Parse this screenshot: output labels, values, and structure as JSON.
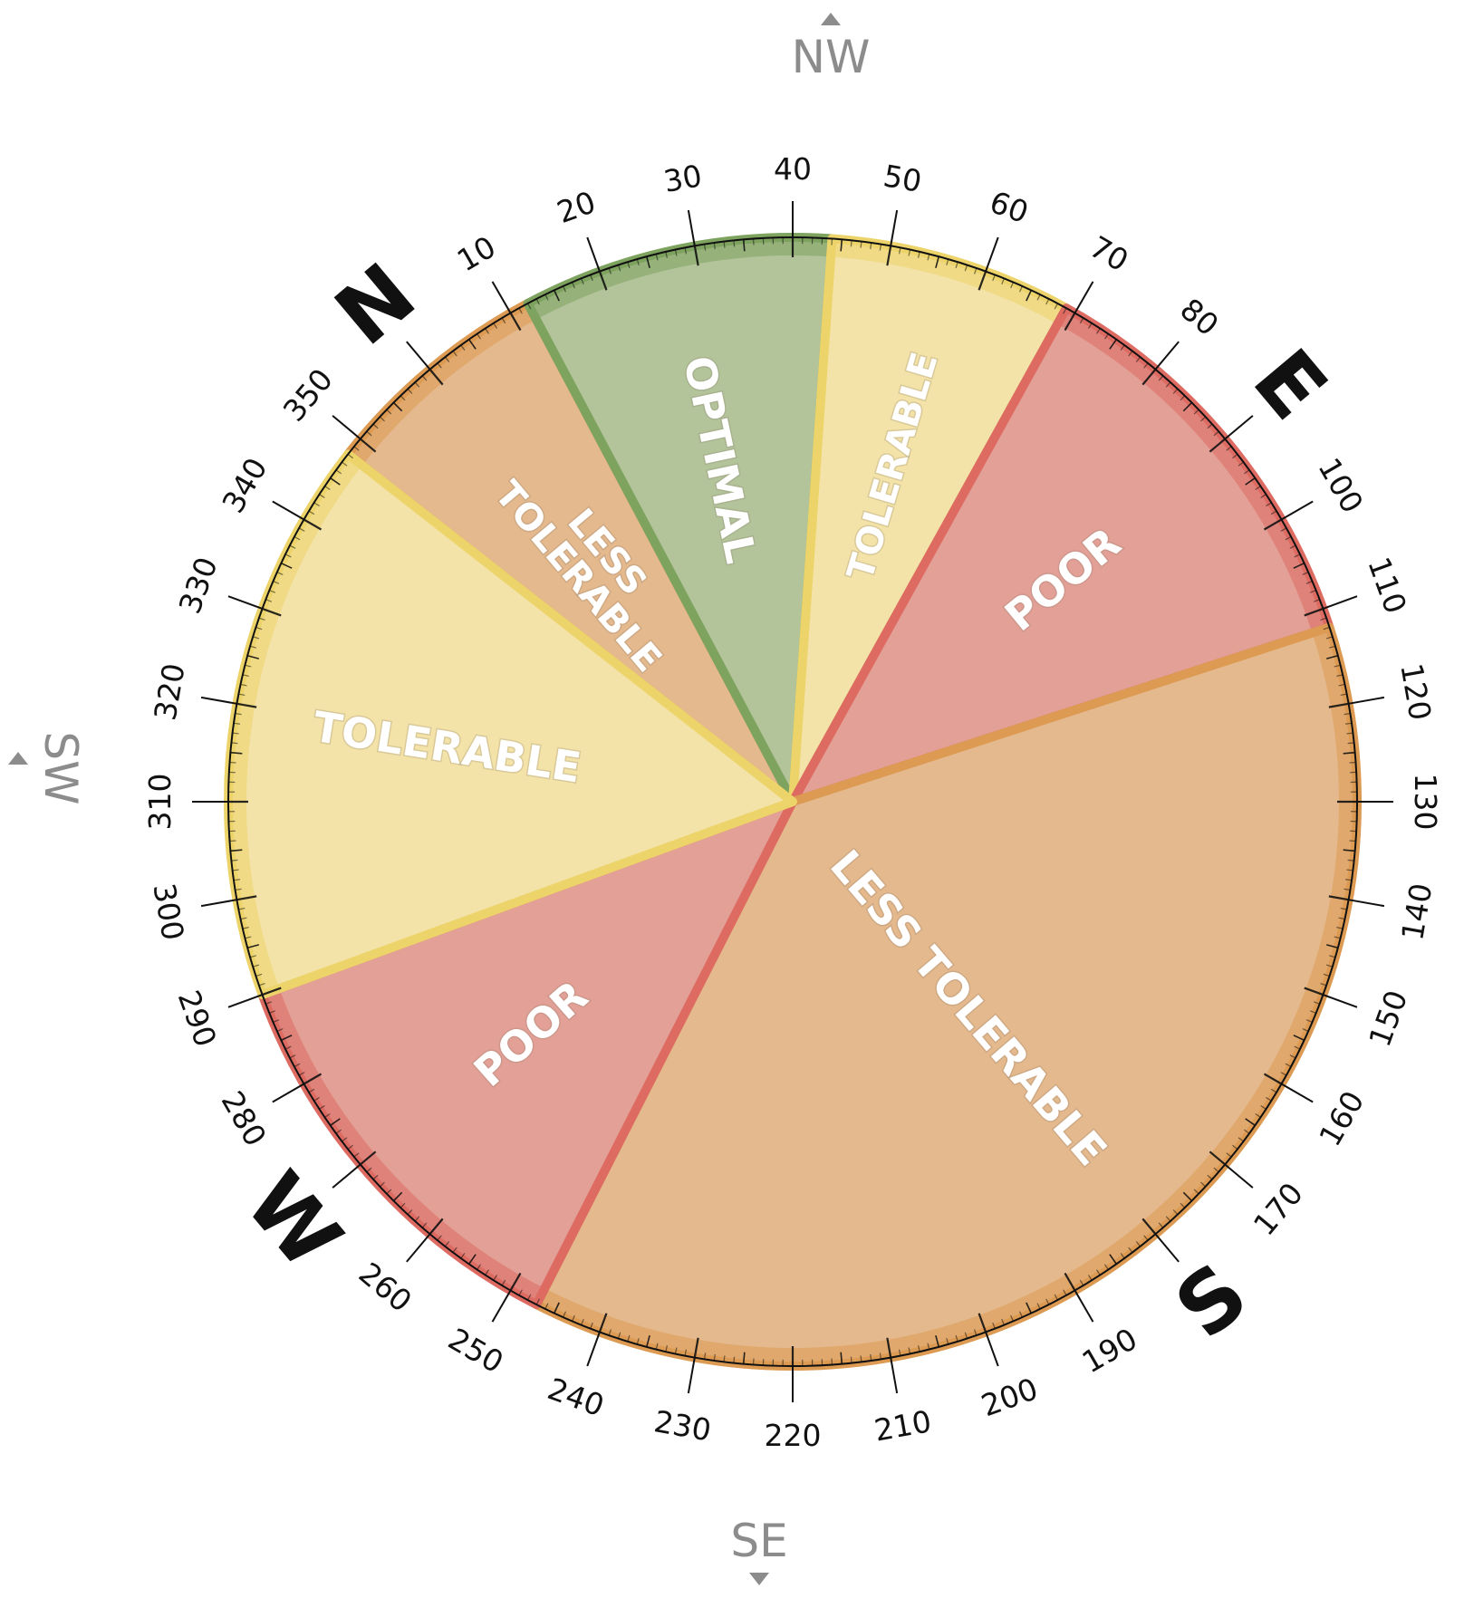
{
  "colors": {
    "optimal": "#b3c49b",
    "optimal_edge": "#7ea35f",
    "tolerable": "#f3e3a8",
    "tolerable_edge": "#edd46a",
    "less_tolerable": "#e4b98d",
    "less_tolerable_edge": "#dc9a52",
    "poor": "#e3a097",
    "poor_edge": "#dd6b62",
    "label_shadow": "#8a7a6a",
    "ink": "#111111",
    "grey": "#8c8c8c"
  },
  "segments": [
    {
      "category": "less_tolerable",
      "start": 348,
      "end": 12,
      "label_lines": [
        "LESS",
        "TOLERABLE"
      ]
    },
    {
      "category": "optimal",
      "start": 12,
      "end": 44,
      "label_lines": [
        "OPTIMAL"
      ]
    },
    {
      "category": "tolerable",
      "start": 44,
      "end": 69,
      "label_lines": [
        "TOLERABLE"
      ]
    },
    {
      "category": "poor",
      "start": 69,
      "end": 112,
      "label_lines": [
        "POOR"
      ]
    },
    {
      "category": "less_tolerable",
      "start": 112,
      "end": 247,
      "label_lines": [
        "LESS TOLERABLE"
      ]
    },
    {
      "category": "poor",
      "start": 247,
      "end": 290,
      "label_lines": [
        "POOR"
      ]
    },
    {
      "category": "tolerable",
      "start": 290,
      "end": 348,
      "label_lines": [
        "TOLERABLE"
      ]
    }
  ],
  "degree_labels": [
    "10",
    "20",
    "30",
    "40",
    "50",
    "60",
    "70",
    "80",
    "100",
    "110",
    "120",
    "130",
    "140",
    "150",
    "160",
    "170",
    "190",
    "200",
    "210",
    "220",
    "230",
    "240",
    "250",
    "260",
    "280",
    "290",
    "300",
    "310",
    "320",
    "330",
    "340",
    "350"
  ],
  "cardinals": [
    {
      "label": "N",
      "bearing": 0
    },
    {
      "label": "E",
      "bearing": 90
    },
    {
      "label": "S",
      "bearing": 180
    },
    {
      "label": "W",
      "bearing": 270
    }
  ],
  "intercardinals": [
    {
      "label": "NW",
      "arrow": "up"
    },
    {
      "label": "SW",
      "arrow": "up"
    },
    {
      "label": "SE",
      "arrow": "down"
    }
  ]
}
